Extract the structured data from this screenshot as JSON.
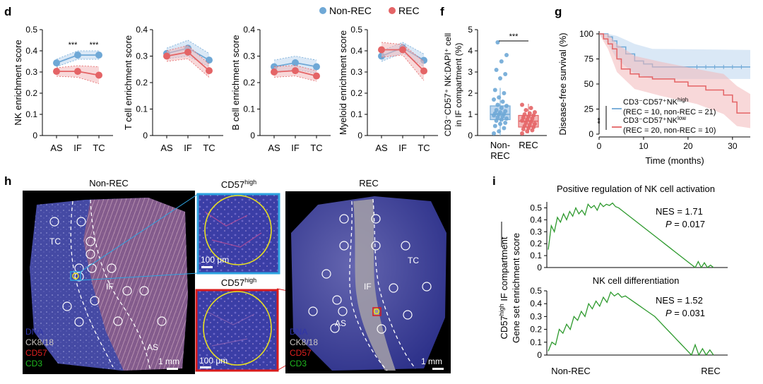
{
  "panel_labels": {
    "d": "d",
    "f": "f",
    "g": "g",
    "h": "h",
    "i": "i"
  },
  "legend": {
    "non_rec": "Non-REC",
    "rec": "REC"
  },
  "colors": {
    "blue": "#6fa8d6",
    "red": "#e46466",
    "blue_fill": "#bcd6ee",
    "red_fill": "#f3b8b9",
    "green": "#2e9a2e",
    "dna": "#3035a8",
    "ck": "#c9c4c0",
    "cd57": "#e02020",
    "cd3": "#1fb81f",
    "scalebox": "#2ea3e0",
    "redbox": "#d91b1b",
    "yellow": "#e8e020"
  },
  "chart_data": [
    {
      "type": "line",
      "panel": "d",
      "ylabel": "NK enrichment score",
      "categories": [
        "AS",
        "IF",
        "TC"
      ],
      "ylim": [
        0,
        0.5
      ],
      "yticks": [
        "0",
        "0.1",
        "0.2",
        "0.3",
        "0.4",
        "0.5"
      ],
      "series": [
        {
          "name": "Non-REC",
          "values": [
            0.343,
            0.38,
            0.38
          ],
          "lo": [
            0.325,
            0.36,
            0.36
          ],
          "hi": [
            0.36,
            0.4,
            0.4
          ]
        },
        {
          "name": "REC",
          "values": [
            0.303,
            0.303,
            0.285
          ],
          "lo": [
            0.28,
            0.275,
            0.245
          ],
          "hi": [
            0.32,
            0.33,
            0.325
          ]
        }
      ],
      "annotations": [
        "***",
        "***"
      ]
    },
    {
      "type": "line",
      "panel": "d2",
      "ylabel": "T cell enrichment score",
      "categories": [
        "AS",
        "IF",
        "TC"
      ],
      "ylim": [
        0,
        0.4
      ],
      "yticks": [
        "0",
        "0.1",
        "0.2",
        "0.3",
        "0.4"
      ],
      "series": [
        {
          "name": "Non-REC",
          "values": [
            0.31,
            0.33,
            0.285
          ],
          "lo": [
            0.29,
            0.3,
            0.26
          ],
          "hi": [
            0.33,
            0.36,
            0.31
          ]
        },
        {
          "name": "REC",
          "values": [
            0.3,
            0.315,
            0.245
          ],
          "lo": [
            0.28,
            0.29,
            0.22
          ],
          "hi": [
            0.32,
            0.34,
            0.27
          ]
        }
      ]
    },
    {
      "type": "line",
      "panel": "d3",
      "ylabel": "B cell enrichment score",
      "categories": [
        "AS",
        "IF",
        "TC"
      ],
      "ylim": [
        0,
        0.4
      ],
      "yticks": [
        "0",
        "0.1",
        "0.2",
        "0.3",
        "0.4"
      ],
      "series": [
        {
          "name": "Non-REC",
          "values": [
            0.26,
            0.275,
            0.26
          ],
          "lo": [
            0.235,
            0.25,
            0.235
          ],
          "hi": [
            0.285,
            0.3,
            0.285
          ]
        },
        {
          "name": "REC",
          "values": [
            0.24,
            0.245,
            0.225
          ],
          "lo": [
            0.22,
            0.225,
            0.205
          ],
          "hi": [
            0.26,
            0.265,
            0.245
          ]
        }
      ]
    },
    {
      "type": "line",
      "panel": "d4",
      "ylabel": "Myeloid enrichment score",
      "categories": [
        "AS",
        "IF",
        "TC"
      ],
      "ylim": [
        0,
        0.5
      ],
      "yticks": [
        "0",
        "0.1",
        "0.2",
        "0.3",
        "0.4",
        "0.5"
      ],
      "series": [
        {
          "name": "Non-REC",
          "values": [
            0.375,
            0.415,
            0.355
          ],
          "lo": [
            0.35,
            0.39,
            0.325
          ],
          "hi": [
            0.4,
            0.44,
            0.385
          ]
        },
        {
          "name": "REC",
          "values": [
            0.405,
            0.405,
            0.305
          ],
          "lo": [
            0.37,
            0.38,
            0.26
          ],
          "hi": [
            0.44,
            0.43,
            0.35
          ]
        }
      ]
    },
    {
      "type": "scatter",
      "panel": "f",
      "ylabel_lines": [
        "CD3⁻CD57⁺ NK:DAPI⁺ cell",
        "in IF compartment (%)"
      ],
      "categories": [
        "Non-\nREC",
        "REC"
      ],
      "ylim": [
        0,
        5
      ],
      "yticks": [
        "0",
        "1",
        "2",
        "3",
        "4",
        "5"
      ],
      "annotation": "***",
      "series": [
        {
          "name": "Non-REC",
          "box": {
            "q1": 0.75,
            "median": 1.0,
            "q3": 1.4,
            "whisker_lo": 0.0,
            "whisker_hi": 2.25
          },
          "values": [
            0.1,
            0.2,
            0.35,
            0.45,
            0.55,
            0.6,
            0.7,
            0.75,
            0.8,
            0.85,
            0.9,
            0.95,
            1.0,
            1.02,
            1.05,
            1.1,
            1.15,
            1.2,
            1.3,
            1.4,
            1.45,
            1.6,
            1.7,
            1.8,
            2.0,
            2.15,
            2.7,
            2.9,
            3.1,
            3.5,
            3.8,
            4.4
          ]
        },
        {
          "name": "REC",
          "box": {
            "q1": 0.4,
            "median": 0.68,
            "q3": 0.95,
            "whisker_lo": 0.1,
            "whisker_hi": 1.5
          },
          "values": [
            0.1,
            0.2,
            0.25,
            0.3,
            0.35,
            0.4,
            0.45,
            0.5,
            0.55,
            0.6,
            0.65,
            0.7,
            0.75,
            0.8,
            0.85,
            0.9,
            0.95,
            1.0,
            1.05,
            1.1,
            1.2,
            1.3,
            1.45
          ]
        }
      ]
    },
    {
      "type": "line",
      "panel": "g",
      "ylabel": "Disease-free survival (%)",
      "xlabel": "Time (months)",
      "xlim": [
        0,
        34
      ],
      "ylim": [
        0,
        100
      ],
      "xticks": [
        "0",
        "10",
        "20",
        "30"
      ],
      "yticks": [
        "0",
        "25",
        "50",
        "75",
        "100"
      ],
      "series": [
        {
          "name": "CD3⁻CD57⁺NK",
          "sup": "high",
          "note": "(REC = 10, non-REC = 21)",
          "steps": [
            [
              0,
              100
            ],
            [
              2,
              100
            ],
            [
              2,
              97
            ],
            [
              3,
              97
            ],
            [
              3,
              93
            ],
            [
              4,
              93
            ],
            [
              4,
              87
            ],
            [
              6,
              87
            ],
            [
              6,
              80
            ],
            [
              8,
              80
            ],
            [
              8,
              73
            ],
            [
              10,
              73
            ],
            [
              10,
              70
            ],
            [
              12,
              70
            ],
            [
              12,
              67
            ],
            [
              34,
              67
            ]
          ],
          "band": [
            [
              0,
              100,
              100
            ],
            [
              2,
              90,
              100
            ],
            [
              4,
              75,
              98
            ],
            [
              8,
              60,
              90
            ],
            [
              12,
              55,
              85
            ],
            [
              34,
              55,
              84
            ]
          ]
        },
        {
          "name": "CD3⁻CD57⁺NK",
          "sup": "low",
          "note": "(REC = 20, non-REC = 10)",
          "steps": [
            [
              0,
              100
            ],
            [
              1,
              100
            ],
            [
              1,
              95
            ],
            [
              2,
              95
            ],
            [
              2,
              90
            ],
            [
              3,
              90
            ],
            [
              3,
              85
            ],
            [
              4,
              85
            ],
            [
              4,
              75
            ],
            [
              5,
              75
            ],
            [
              5,
              65
            ],
            [
              7,
              65
            ],
            [
              7,
              60
            ],
            [
              9,
              60
            ],
            [
              9,
              57
            ],
            [
              12,
              57
            ],
            [
              12,
              55
            ],
            [
              17,
              55
            ],
            [
              17,
              52
            ],
            [
              20,
              52
            ],
            [
              20,
              48
            ],
            [
              24,
              48
            ],
            [
              24,
              44
            ],
            [
              28,
              44
            ],
            [
              28,
              39
            ],
            [
              30,
              39
            ],
            [
              30,
              32
            ],
            [
              31,
              32
            ],
            [
              31,
              21
            ],
            [
              34,
              21
            ]
          ],
          "band": [
            [
              0,
              100,
              100
            ],
            [
              2,
              85,
              100
            ],
            [
              4,
              62,
              90
            ],
            [
              8,
              45,
              78
            ],
            [
              14,
              38,
              72
            ],
            [
              22,
              30,
              65
            ],
            [
              28,
              20,
              60
            ],
            [
              31,
              8,
              48
            ],
            [
              34,
              6,
              40
            ]
          ]
        }
      ],
      "annotation": "**"
    },
    {
      "type": "line",
      "panel": "i",
      "title": "Positive regulation of NK cell activation",
      "nes": "NES = 1.71",
      "p_prefix": "P",
      "p_value": " = 0.017",
      "ylim": [
        0,
        0.55
      ],
      "yticks": [
        "0",
        "0.1",
        "0.2",
        "0.3",
        "0.4",
        "0.5"
      ],
      "values": [
        0.15,
        0.35,
        0.3,
        0.42,
        0.38,
        0.45,
        0.4,
        0.47,
        0.43,
        0.5,
        0.45,
        0.48,
        0.44,
        0.53,
        0.5,
        0.52,
        0.48,
        0.54,
        0.51,
        0.53,
        0.52,
        0.54,
        0.51,
        0.5,
        0.48,
        0.46,
        0.44,
        0.42,
        0.4,
        0.38,
        0.36,
        0.34,
        0.32,
        0.3,
        0.28,
        0.26,
        0.24,
        0.22,
        0.2,
        0.18,
        0.16,
        0.14,
        0.12,
        0.1,
        0.08,
        0.06,
        0.04,
        0.02,
        0.0,
        0.05,
        0.0,
        0.04,
        0.0,
        0.02,
        0.0
      ]
    },
    {
      "type": "line",
      "panel": "i2",
      "title": "NK cell differentiation",
      "nes": "NES = 1.52",
      "p_prefix": "P",
      "p_value": " = 0.031",
      "ylim": [
        0,
        0.5
      ],
      "yticks": [
        "0",
        "0.1",
        "0.2",
        "0.3",
        "0.4",
        "0.5"
      ],
      "values": [
        0.03,
        0.1,
        0.08,
        0.2,
        0.17,
        0.24,
        0.2,
        0.3,
        0.27,
        0.34,
        0.3,
        0.4,
        0.36,
        0.42,
        0.38,
        0.45,
        0.41,
        0.49,
        0.46,
        0.48,
        0.45,
        0.46,
        0.44,
        0.42,
        0.4,
        0.38,
        0.36,
        0.34,
        0.32,
        0.3,
        0.27,
        0.24,
        0.21,
        0.18,
        0.15,
        0.12,
        0.09,
        0.06,
        0.03,
        0.0,
        0.08,
        0.0,
        0.05,
        0.0,
        0.04,
        0.0
      ]
    }
  ],
  "gsea": {
    "ylabel_a": "CD57",
    "ylabel_sup": "high",
    "ylabel_b": " IF compartment",
    "ylabel_c": "Gene set enrichment score",
    "x_left": "Non-REC",
    "x_right": "REC"
  },
  "images": {
    "left": {
      "title": "Non-REC",
      "regions": [
        "TC",
        "IF",
        "AS"
      ],
      "scale": "1 mm"
    },
    "zoom_top": {
      "title": "CD57",
      "sup": "high",
      "scale": "100 μm"
    },
    "zoom_bottom": {
      "title": "CD57",
      "sup": "high",
      "scale": "100 μm"
    },
    "right": {
      "title": "REC",
      "regions": [
        "TC",
        "IF",
        "AS"
      ],
      "scale": "1 mm"
    },
    "channels": [
      "DNA",
      "CK8/18",
      "CD57",
      "CD3"
    ]
  }
}
